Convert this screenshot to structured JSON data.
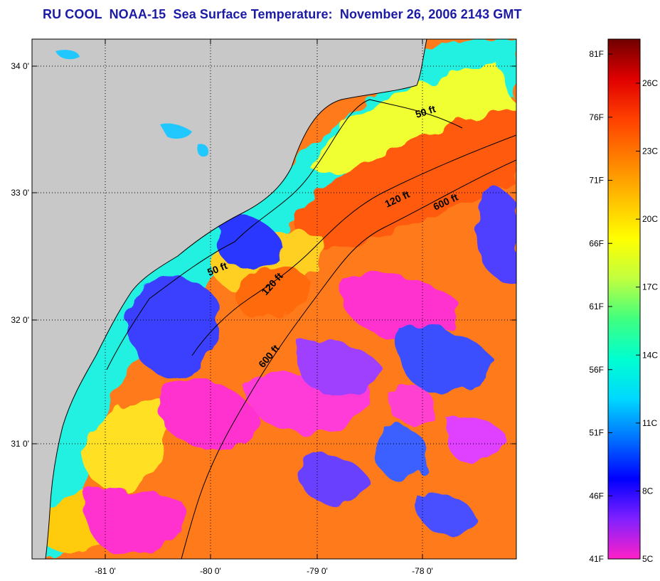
{
  "title": "RU COOL  NOAA-15  Sea Surface Temperature:  November 26, 2006 2143 GMT",
  "colors": {
    "land": "#c8c8c8",
    "frame": "#000000",
    "title": "#1a1aa6"
  },
  "axes": {
    "lat_ticks": [
      {
        "value": 34,
        "label": "34 0'"
      },
      {
        "value": 33,
        "label": "33 0'"
      },
      {
        "value": 32,
        "label": "32 0'"
      },
      {
        "value": 31,
        "label": "31 0'"
      }
    ],
    "lon_ticks": [
      {
        "value": -81,
        "label": "-81 0'"
      },
      {
        "value": -80,
        "label": "-80 0'"
      },
      {
        "value": -79,
        "label": "-79 0'"
      },
      {
        "value": -78,
        "label": "-78 0'"
      }
    ]
  },
  "contours": [
    {
      "label": "50 ft"
    },
    {
      "label": "120 ft"
    },
    {
      "label": "600 ft"
    },
    {
      "label": "50 ft"
    },
    {
      "label": "120 ft"
    },
    {
      "label": "600 ft"
    }
  ],
  "colorbar": {
    "fahrenheit": [
      "81F",
      "76F",
      "71F",
      "66F",
      "61F",
      "56F",
      "51F",
      "46F",
      "41F"
    ],
    "celsius": [
      "26C",
      "23C",
      "20C",
      "17C",
      "14C",
      "11C",
      "8C",
      "5C"
    ],
    "stops": [
      "#ff20c8",
      "#8020ff",
      "#0000ff",
      "#0070ff",
      "#00d8ff",
      "#00ffd0",
      "#40ff80",
      "#c0ff40",
      "#ffff00",
      "#ffc000",
      "#ff8000",
      "#ff4000",
      "#e00000",
      "#700000"
    ]
  }
}
